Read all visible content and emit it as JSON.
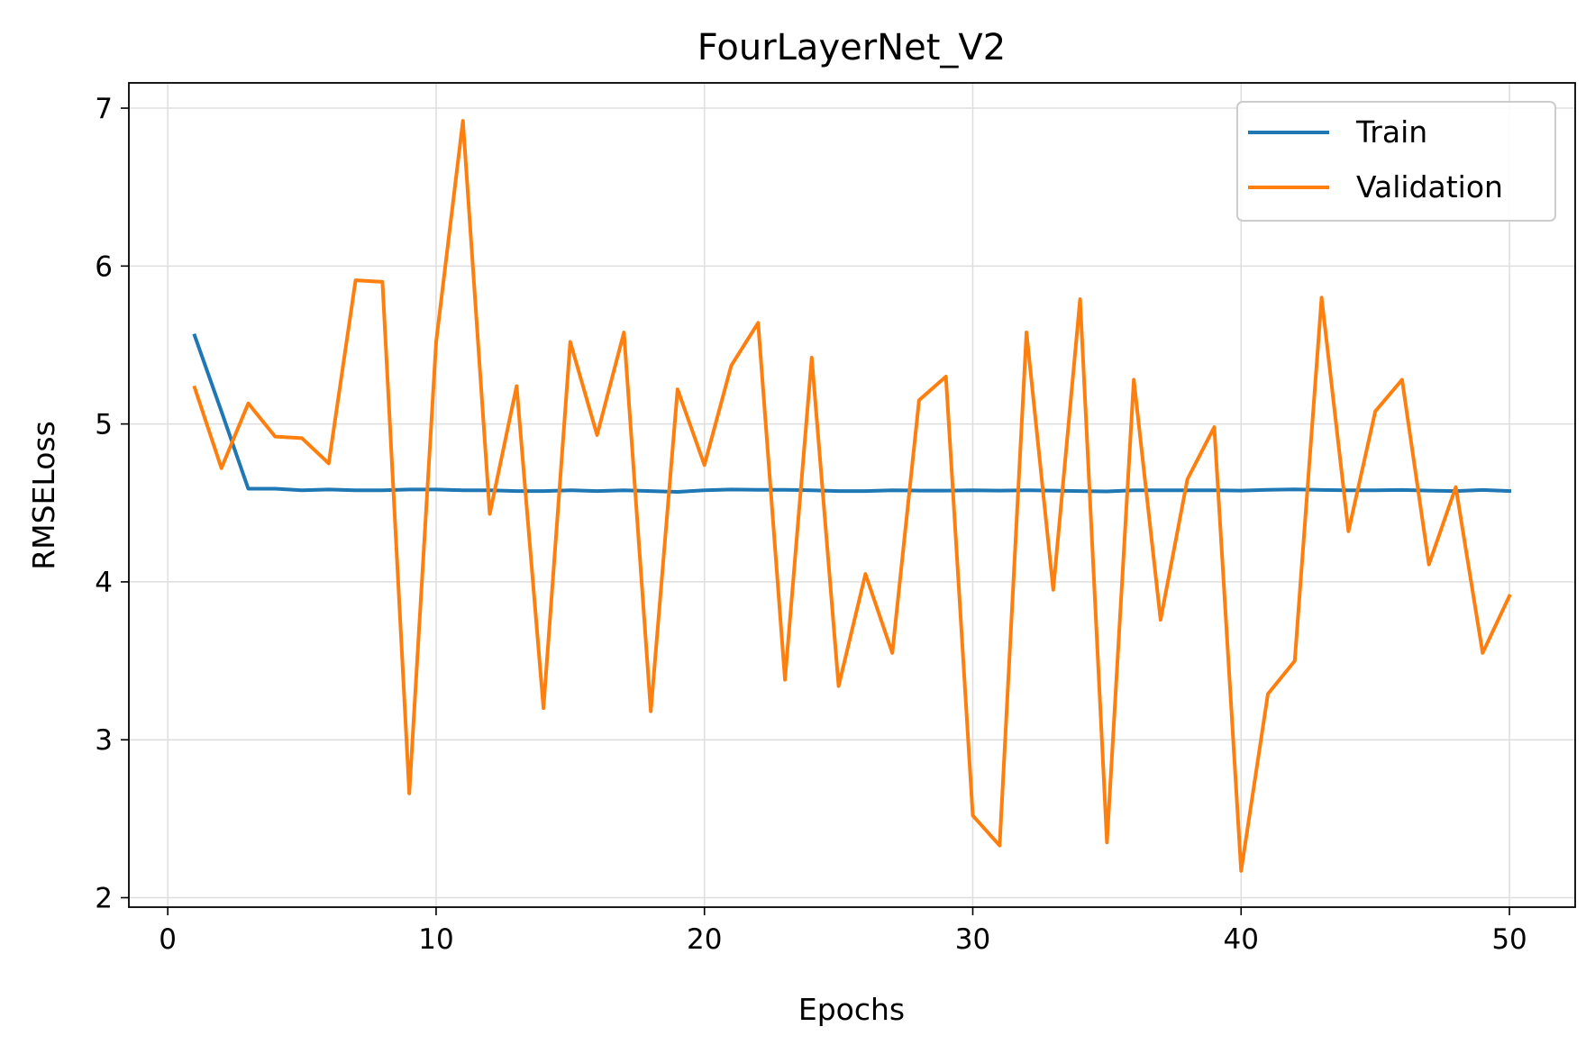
{
  "chart_data": {
    "type": "line",
    "title": "FourLayerNet_V2",
    "xlabel": "Epochs",
    "ylabel": "RMSELoss",
    "xlim": [
      -1.45,
      52.45
    ],
    "ylim": [
      1.94,
      7.16
    ],
    "xticks": [
      0,
      10,
      20,
      30,
      40,
      50
    ],
    "yticks": [
      2,
      3,
      4,
      5,
      6,
      7
    ],
    "grid": true,
    "legend_position": "top-right",
    "x": [
      1,
      2,
      3,
      4,
      5,
      6,
      7,
      8,
      9,
      10,
      11,
      12,
      13,
      14,
      15,
      16,
      17,
      18,
      19,
      20,
      21,
      22,
      23,
      24,
      25,
      26,
      27,
      28,
      29,
      30,
      31,
      32,
      33,
      34,
      35,
      36,
      37,
      38,
      39,
      40,
      41,
      42,
      43,
      44,
      45,
      46,
      47,
      48,
      49,
      50
    ],
    "series": [
      {
        "name": "Train",
        "color": "#1f77b4",
        "values": [
          5.56,
          5.08,
          4.59,
          4.59,
          4.58,
          4.585,
          4.58,
          4.58,
          4.585,
          4.585,
          4.58,
          4.58,
          4.575,
          4.575,
          4.58,
          4.575,
          4.58,
          4.575,
          4.57,
          4.58,
          4.585,
          4.583,
          4.583,
          4.58,
          4.575,
          4.575,
          4.58,
          4.578,
          4.578,
          4.58,
          4.578,
          4.58,
          4.578,
          4.575,
          4.573,
          4.58,
          4.58,
          4.58,
          4.58,
          4.578,
          4.583,
          4.586,
          4.582,
          4.58,
          4.58,
          4.582,
          4.578,
          4.575,
          4.582,
          4.575
        ]
      },
      {
        "name": "Validation",
        "color": "#ff7f0e",
        "values": [
          5.23,
          4.72,
          5.13,
          4.92,
          4.91,
          4.75,
          5.91,
          5.9,
          2.66,
          5.52,
          6.92,
          4.43,
          5.24,
          3.2,
          5.52,
          4.93,
          5.58,
          3.18,
          5.22,
          4.74,
          5.37,
          5.64,
          3.38,
          5.42,
          3.34,
          4.05,
          3.55,
          5.15,
          5.3,
          2.52,
          2.33,
          5.58,
          3.95,
          5.79,
          2.35,
          5.28,
          3.76,
          4.65,
          4.98,
          2.17,
          3.29,
          3.5,
          5.8,
          4.32,
          5.08,
          5.28,
          4.11,
          4.6,
          3.55,
          3.91
        ]
      }
    ]
  }
}
